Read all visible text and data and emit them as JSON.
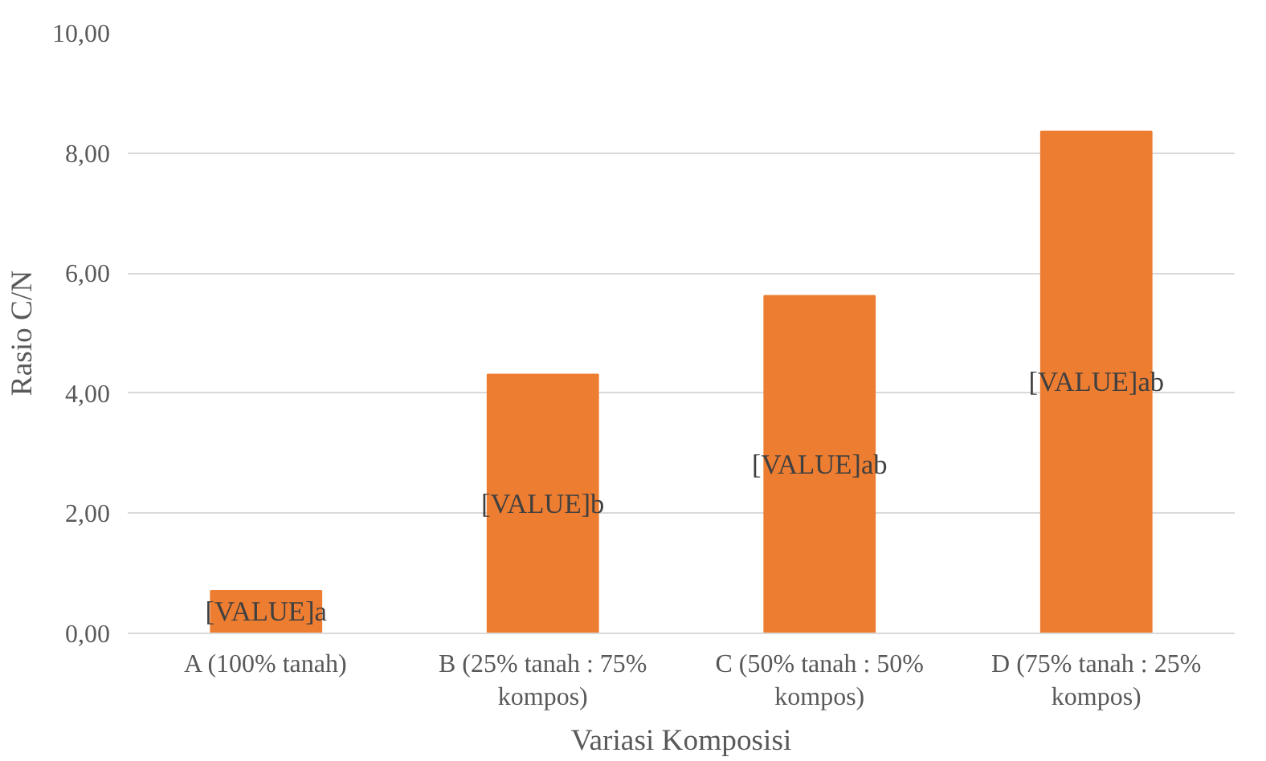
{
  "chart_data": {
    "type": "bar",
    "xlabel": "Variasi Komposisi",
    "ylabel": "Rasio C/N",
    "categories": [
      "A (100% tanah)",
      "B (25% tanah : 75% kompos)",
      "C (50% tanah : 50% kompos)",
      "D (75% tanah : 25% kompos)"
    ],
    "values": [
      0.71,
      4.31,
      5.62,
      8.36
    ],
    "value_labels": [
      "[VALUE]a",
      "[VALUE]b",
      "[VALUE]ab",
      "[VALUE]ab"
    ],
    "color": "#ed7d31",
    "ylim": [
      0,
      10
    ],
    "yticks": [
      {
        "value": 0,
        "label": "0,00"
      },
      {
        "value": 2,
        "label": "2,00"
      },
      {
        "value": 4,
        "label": "4,00"
      },
      {
        "value": 6,
        "label": "6,00"
      },
      {
        "value": 8,
        "label": "8,00"
      },
      {
        "value": 10,
        "label": "10,00"
      }
    ],
    "grid": "y"
  }
}
